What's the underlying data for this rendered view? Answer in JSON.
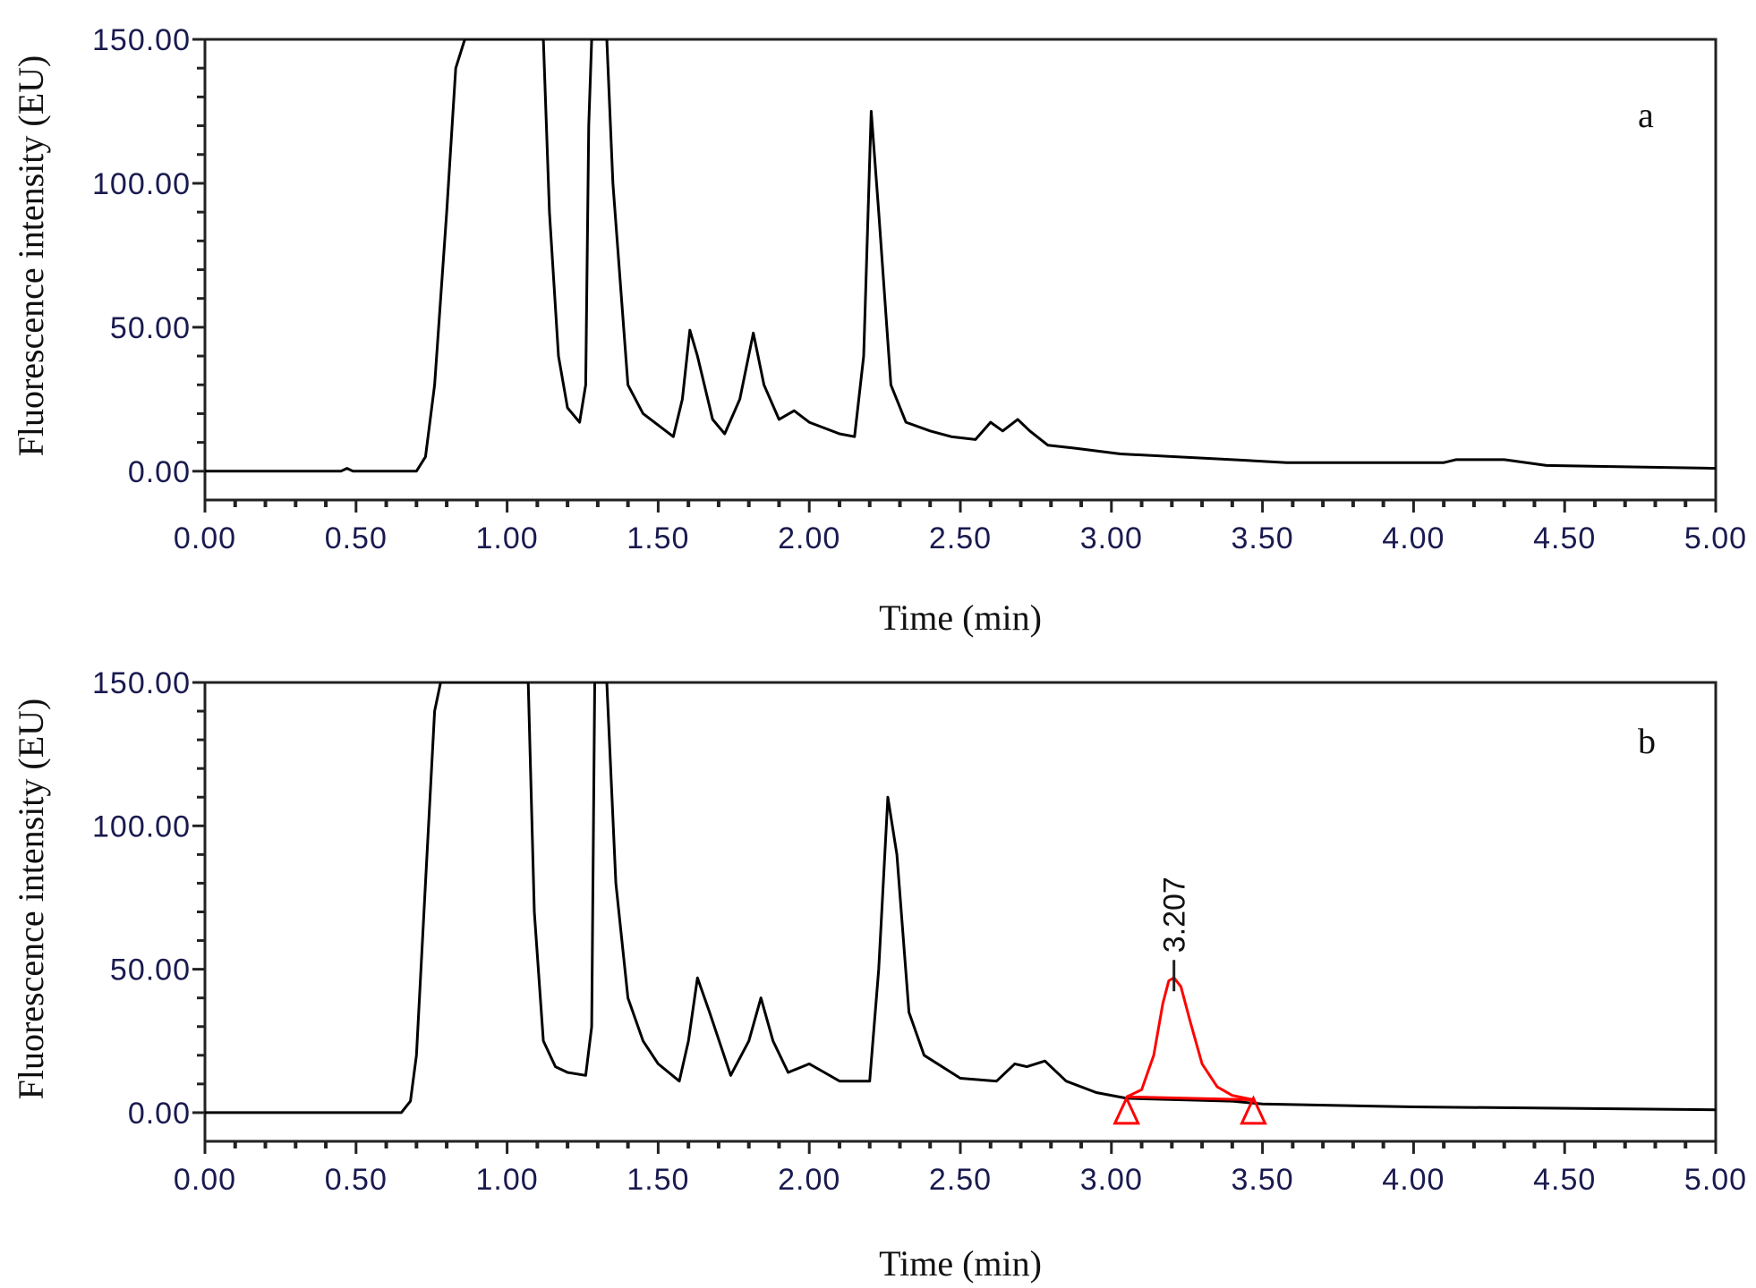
{
  "chart_data": [
    {
      "type": "line",
      "panel_label": "a",
      "xlabel": "Time (min)",
      "ylabel": "Fluorescence intensity (EU)",
      "xlim": [
        0,
        5
      ],
      "ylim": [
        -10,
        150
      ],
      "xticks": [
        "0.00",
        "0.50",
        "1.00",
        "1.50",
        "2.00",
        "2.50",
        "3.00",
        "3.50",
        "4.00",
        "4.50",
        "5.00"
      ],
      "yticks": [
        "0.00",
        "50.00",
        "100.00",
        "150.00"
      ],
      "series": [
        {
          "name": "chromatogram",
          "color": "#000000",
          "x": [
            0,
            0.45,
            0.47,
            0.49,
            0.7,
            0.73,
            0.76,
            0.8,
            0.83,
            0.86,
            1.12,
            1.14,
            1.17,
            1.2,
            1.24,
            1.26,
            1.27,
            1.28,
            1.33,
            1.35,
            1.4,
            1.45,
            1.5,
            1.55,
            1.58,
            1.605,
            1.63,
            1.68,
            1.72,
            1.77,
            1.815,
            1.85,
            1.9,
            1.95,
            2.0,
            2.1,
            2.15,
            2.18,
            2.205,
            2.23,
            2.27,
            2.32,
            2.4,
            2.47,
            2.55,
            2.6,
            2.64,
            2.69,
            2.73,
            2.79,
            2.88,
            3.03,
            3.4,
            3.58,
            4.1,
            4.14,
            4.3,
            4.44,
            5.0
          ],
          "y": [
            0,
            0,
            1,
            0,
            0,
            5,
            30,
            90,
            140,
            160,
            160,
            90,
            40,
            22,
            17,
            30,
            120,
            160,
            160,
            100,
            30,
            20,
            16,
            12,
            25,
            49,
            40,
            18,
            13,
            25,
            48,
            30,
            18,
            21,
            17,
            13,
            12,
            40,
            125,
            90,
            30,
            17,
            14,
            12,
            11,
            17,
            14,
            18,
            14,
            9,
            8,
            6,
            4,
            3,
            3,
            4,
            4,
            2,
            1
          ]
        }
      ]
    },
    {
      "type": "line",
      "panel_label": "b",
      "xlabel": "Time (min)",
      "ylabel": "Fluorescence intensity (EU)",
      "xlim": [
        0,
        5
      ],
      "ylim": [
        -10,
        150
      ],
      "xticks": [
        "0.00",
        "0.50",
        "1.00",
        "1.50",
        "2.00",
        "2.50",
        "3.00",
        "3.50",
        "4.00",
        "4.50",
        "5.00"
      ],
      "yticks": [
        "0.00",
        "50.00",
        "100.00",
        "150.00"
      ],
      "series": [
        {
          "name": "chromatogram",
          "color": "#000000",
          "x": [
            0,
            0.65,
            0.68,
            0.7,
            0.73,
            0.76,
            0.78,
            1.07,
            1.09,
            1.12,
            1.16,
            1.2,
            1.26,
            1.28,
            1.29,
            1.33,
            1.36,
            1.4,
            1.45,
            1.5,
            1.57,
            1.6,
            1.63,
            1.67,
            1.74,
            1.8,
            1.84,
            1.88,
            1.93,
            2.0,
            2.05,
            2.1,
            2.2,
            2.23,
            2.26,
            2.29,
            2.33,
            2.38,
            2.5,
            2.62,
            2.68,
            2.72,
            2.78,
            2.85,
            2.95,
            3.05,
            3.4,
            3.5,
            4.0,
            5.0
          ],
          "y": [
            0,
            0,
            4,
            20,
            80,
            140,
            160,
            160,
            70,
            25,
            16,
            14,
            13,
            30,
            160,
            160,
            80,
            40,
            25,
            17,
            11,
            25,
            47,
            35,
            13,
            25,
            40,
            25,
            14,
            17,
            14,
            11,
            11,
            50,
            110,
            90,
            35,
            20,
            12,
            11,
            17,
            16,
            18,
            11,
            7,
            5,
            4,
            3,
            2,
            1
          ]
        },
        {
          "name": "integrated peak",
          "color": "#ff0000",
          "x": [
            3.05,
            3.1,
            3.14,
            3.17,
            3.19,
            3.207,
            3.23,
            3.26,
            3.3,
            3.35,
            3.4,
            3.47
          ],
          "y": [
            5.5,
            8,
            20,
            38,
            46,
            47,
            44,
            32,
            17,
            9,
            6,
            4.5
          ],
          "baseline": {
            "start": [
              3.05,
              5.5
            ],
            "end": [
              3.47,
              4.5
            ]
          }
        }
      ],
      "annotations": [
        {
          "text": "3.207",
          "x": 3.207,
          "y": 47
        }
      ],
      "peak_markers": [
        3.05,
        3.47
      ]
    }
  ]
}
